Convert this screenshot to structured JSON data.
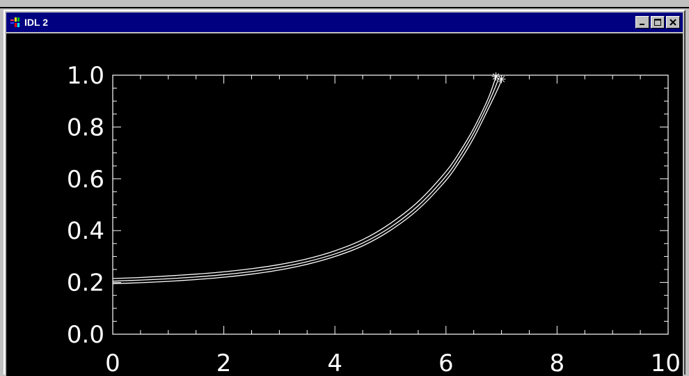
{
  "window": {
    "title": "IDL 2",
    "minimize_label": "_",
    "maximize_label": "□",
    "close_label": "✕"
  },
  "colors": {
    "title_bar": "#000080",
    "plot_background": "#000000",
    "plot_foreground": "#ffffff"
  },
  "chart_data": {
    "type": "line",
    "title": "",
    "xlabel": "",
    "ylabel": "",
    "xlim": [
      0,
      10
    ],
    "ylim": [
      0,
      1.0
    ],
    "x_ticks": [
      "0",
      "2",
      "4",
      "6",
      "8",
      "10"
    ],
    "y_ticks": [
      "0.0",
      "0.2",
      "0.4",
      "0.6",
      "0.8",
      "1.0"
    ],
    "grid": false,
    "series": [
      {
        "x": [
          0,
          0.5,
          1,
          1.5,
          2,
          2.5,
          3,
          3.5,
          4,
          4.5,
          5,
          5.5,
          6,
          6.25,
          6.5,
          6.75,
          6.85,
          6.9
        ],
        "values": [
          0.215,
          0.219,
          0.225,
          0.232,
          0.241,
          0.253,
          0.269,
          0.291,
          0.322,
          0.365,
          0.428,
          0.512,
          0.628,
          0.705,
          0.795,
          0.905,
          0.962,
          0.995
        ]
      },
      {
        "x": [
          0,
          0.5,
          1,
          1.5,
          2,
          2.5,
          3,
          3.5,
          4,
          4.5,
          5,
          5.5,
          6,
          6.25,
          6.5,
          6.75,
          6.9,
          6.95
        ],
        "values": [
          0.205,
          0.209,
          0.214,
          0.221,
          0.23,
          0.242,
          0.258,
          0.28,
          0.31,
          0.352,
          0.413,
          0.496,
          0.61,
          0.687,
          0.777,
          0.885,
          0.96,
          0.99
        ]
      },
      {
        "x": [
          0,
          0.5,
          1,
          1.5,
          2,
          2.5,
          3,
          3.5,
          4,
          4.5,
          5,
          5.5,
          6,
          6.25,
          6.5,
          6.75,
          6.95,
          7.0
        ],
        "values": [
          0.195,
          0.199,
          0.204,
          0.211,
          0.22,
          0.232,
          0.248,
          0.27,
          0.3,
          0.341,
          0.401,
          0.482,
          0.594,
          0.669,
          0.758,
          0.865,
          0.955,
          0.985
        ]
      }
    ],
    "markers": [
      {
        "x": 6.9,
        "y": 0.995
      },
      {
        "x": 7.0,
        "y": 0.985
      }
    ]
  }
}
